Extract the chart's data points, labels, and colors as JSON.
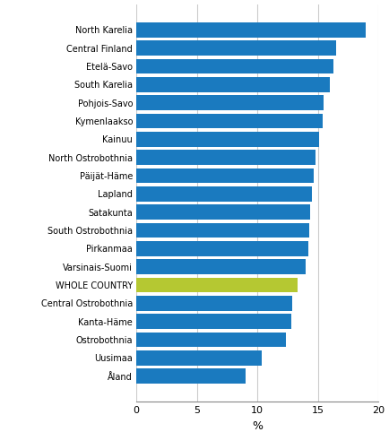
{
  "regions": [
    "North Karelia",
    "Central Finland",
    "Etelä-Savo",
    "South Karelia",
    "Pohjois-Savo",
    "Kymenlaakso",
    "Kainuu",
    "North Ostrobothnia",
    "Päijät-Häme",
    "Lapland",
    "Satakunta",
    "South Ostrobothnia",
    "Pirkanmaa",
    "Varsinais-Suomi",
    "WHOLE COUNTRY",
    "Central Ostrobothnia",
    "Kanta-Häme",
    "Ostrobothnia",
    "Uusimaa",
    "Åland"
  ],
  "values": [
    19.0,
    16.5,
    16.3,
    16.0,
    15.5,
    15.4,
    15.1,
    14.8,
    14.7,
    14.5,
    14.4,
    14.3,
    14.2,
    14.0,
    13.3,
    12.9,
    12.8,
    12.4,
    10.4,
    9.0
  ],
  "bar_colors": [
    "#1a7abf",
    "#1a7abf",
    "#1a7abf",
    "#1a7abf",
    "#1a7abf",
    "#1a7abf",
    "#1a7abf",
    "#1a7abf",
    "#1a7abf",
    "#1a7abf",
    "#1a7abf",
    "#1a7abf",
    "#1a7abf",
    "#1a7abf",
    "#b5c832",
    "#1a7abf",
    "#1a7abf",
    "#1a7abf",
    "#1a7abf",
    "#1a7abf"
  ],
  "xlabel": "%",
  "xlim": [
    0,
    20
  ],
  "xticks": [
    0,
    5,
    10,
    15,
    20
  ],
  "grid_color": "#cccccc",
  "background_color": "#ffffff",
  "bar_height": 0.82,
  "label_fontsize": 7.0,
  "tick_fontsize": 8.0
}
